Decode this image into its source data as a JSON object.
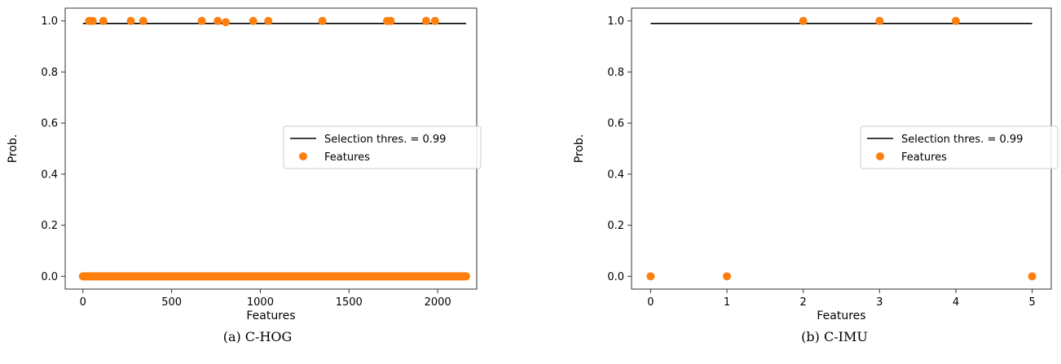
{
  "colors": {
    "threshold_line": "#000000",
    "features": "#ff7f0e",
    "axes": "#333333"
  },
  "chart_data": [
    {
      "type": "scatter",
      "caption": "(a) C-HOG",
      "xlabel": "Features",
      "ylabel": "Prob.",
      "xlim": [
        -100,
        2220
      ],
      "ylim": [
        -0.05,
        1.05
      ],
      "xticks": [
        0,
        500,
        1000,
        1500,
        2000
      ],
      "yticks": [
        0.0,
        0.2,
        0.4,
        0.6,
        0.8,
        1.0
      ],
      "xtick_labels": [
        "0",
        "500",
        "1000",
        "1500",
        "2000"
      ],
      "ytick_labels": [
        "0.0",
        "0.2",
        "0.4",
        "0.6",
        "0.8",
        "1.0"
      ],
      "threshold": {
        "name": "Selection thres. = 0.99",
        "value": 0.99,
        "x_range": [
          0,
          2160
        ]
      },
      "features_label": "Features",
      "legend_position": "center-right",
      "zero_band": {
        "x_range": [
          0,
          2160
        ],
        "value": 0.0
      },
      "points": [
        {
          "x": 35,
          "y": 1.0
        },
        {
          "x": 55,
          "y": 1.0
        },
        {
          "x": 115,
          "y": 1.0
        },
        {
          "x": 270,
          "y": 1.0
        },
        {
          "x": 340,
          "y": 1.0
        },
        {
          "x": 670,
          "y": 1.0
        },
        {
          "x": 760,
          "y": 1.0
        },
        {
          "x": 805,
          "y": 0.995
        },
        {
          "x": 960,
          "y": 1.0
        },
        {
          "x": 1045,
          "y": 1.0
        },
        {
          "x": 1350,
          "y": 1.0
        },
        {
          "x": 1715,
          "y": 1.0
        },
        {
          "x": 1735,
          "y": 1.0
        },
        {
          "x": 1935,
          "y": 1.0
        },
        {
          "x": 1985,
          "y": 1.0
        }
      ]
    },
    {
      "type": "scatter",
      "caption": "(b) C-IMU",
      "xlabel": "Features",
      "ylabel": "Prob.",
      "xlim": [
        -0.25,
        5.25
      ],
      "ylim": [
        -0.05,
        1.05
      ],
      "xticks": [
        0,
        1,
        2,
        3,
        4,
        5
      ],
      "yticks": [
        0.0,
        0.2,
        0.4,
        0.6,
        0.8,
        1.0
      ],
      "xtick_labels": [
        "0",
        "1",
        "2",
        "3",
        "4",
        "5"
      ],
      "ytick_labels": [
        "0.0",
        "0.2",
        "0.4",
        "0.6",
        "0.8",
        "1.0"
      ],
      "threshold": {
        "name": "Selection thres. = 0.99",
        "value": 0.99,
        "x_range": [
          0,
          5
        ]
      },
      "features_label": "Features",
      "legend_position": "center-right",
      "points": [
        {
          "x": 0,
          "y": 0.0
        },
        {
          "x": 1,
          "y": 0.0
        },
        {
          "x": 2,
          "y": 1.0
        },
        {
          "x": 3,
          "y": 1.0
        },
        {
          "x": 4,
          "y": 1.0
        },
        {
          "x": 5,
          "y": 0.0
        }
      ]
    }
  ]
}
